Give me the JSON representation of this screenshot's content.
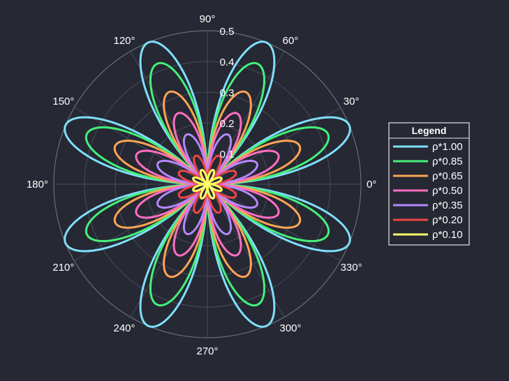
{
  "chart_data": {
    "type": "line",
    "subtype": "polar",
    "title": "",
    "function": "r = rho * |sin(4*theta)| (8-petal rose)",
    "theta_ticks": [
      "0°",
      "30°",
      "60°",
      "90°",
      "120°",
      "150°",
      "180°",
      "210°",
      "240°",
      "270°",
      "300°",
      "330°"
    ],
    "r_ticks": [
      0.1,
      0.2,
      0.3,
      0.4,
      0.5
    ],
    "r_tick_labels": [
      "0.1",
      "0.2",
      "0.3",
      "0.4",
      "0.5"
    ],
    "rlim": [
      0,
      0.5
    ],
    "grid": true,
    "legend": {
      "title": "Legend",
      "position": "right"
    },
    "series": [
      {
        "name": "ρ*1.00",
        "scale": 1.0,
        "peak_r": 0.5,
        "color": "#7fdfff"
      },
      {
        "name": "ρ*0.85",
        "scale": 0.85,
        "peak_r": 0.425,
        "color": "#45f07a"
      },
      {
        "name": "ρ*0.65",
        "scale": 0.65,
        "peak_r": 0.325,
        "color": "#ffa552"
      },
      {
        "name": "ρ*0.50",
        "scale": 0.5,
        "peak_r": 0.25,
        "color": "#ff6fc0"
      },
      {
        "name": "ρ*0.35",
        "scale": 0.35,
        "peak_r": 0.175,
        "color": "#b488ff"
      },
      {
        "name": "ρ*0.20",
        "scale": 0.2,
        "peak_r": 0.1,
        "color": "#f04545"
      },
      {
        "name": "ρ*0.10",
        "scale": 0.1,
        "peak_r": 0.05,
        "color": "#ffff66"
      }
    ]
  }
}
